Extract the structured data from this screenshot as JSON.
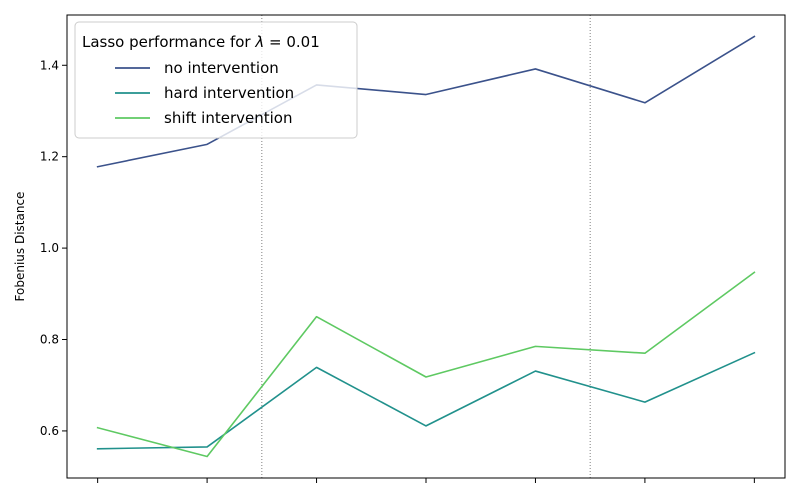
{
  "chart_data": {
    "type": "line",
    "title": "",
    "xlabel": "",
    "ylabel": "Fobenius Distance",
    "x": [
      0,
      1,
      2,
      3,
      4,
      5,
      6
    ],
    "xlim": [
      -0.28,
      6.28
    ],
    "ylim": [
      0.497,
      1.51
    ],
    "yticks": [
      0.6,
      0.8,
      1.0,
      1.2,
      1.4
    ],
    "ytick_labels": [
      "0.6",
      "0.8",
      "1.0",
      "1.2",
      "1.4"
    ],
    "vlines": [
      1.5,
      4.5
    ],
    "grid": false,
    "legend": {
      "title_prefix": "Lasso performance for ",
      "title_symbol": "λ",
      "title_suffix": " = 0.01",
      "placement": "top-left"
    },
    "series": [
      {
        "name": "no intervention",
        "color": "#3b528b",
        "values": [
          1.178,
          1.227,
          1.357,
          1.336,
          1.392,
          1.318,
          1.463
        ]
      },
      {
        "name": "hard intervention",
        "color": "#21918c",
        "values": [
          0.561,
          0.565,
          0.739,
          0.611,
          0.731,
          0.663,
          0.771
        ]
      },
      {
        "name": "shift intervention",
        "color": "#5ec962",
        "values": [
          0.607,
          0.544,
          0.85,
          0.718,
          0.785,
          0.77,
          0.947
        ]
      }
    ]
  }
}
